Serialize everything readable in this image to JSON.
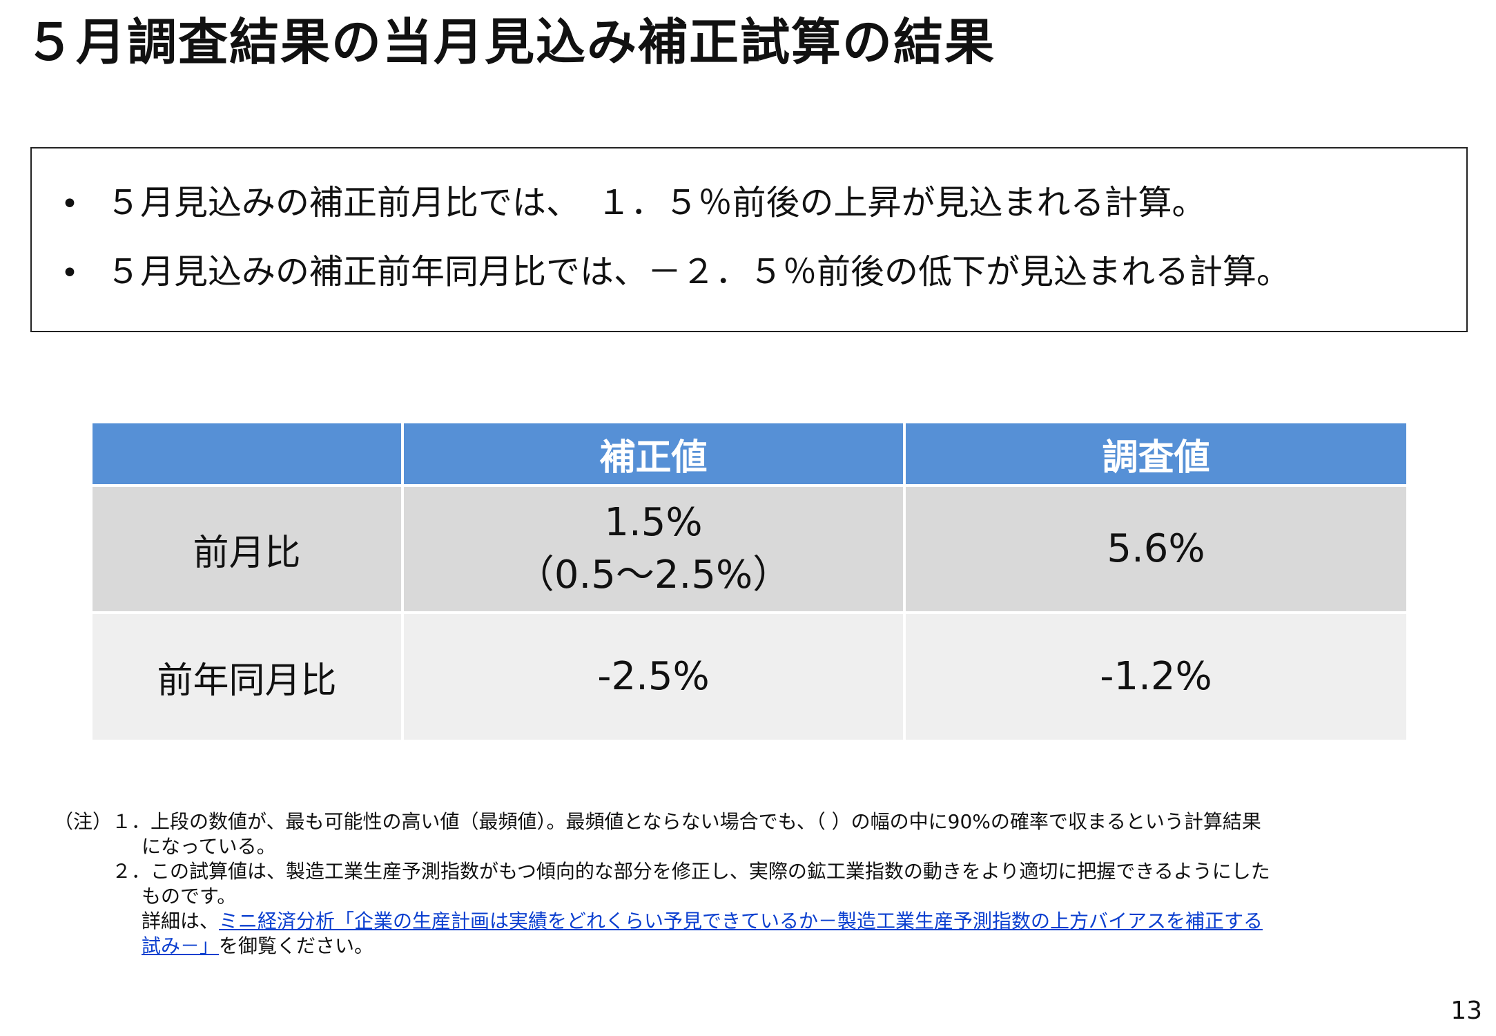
{
  "title": "５月調査結果の当月見込み補正試算の結果",
  "summary": {
    "bullet_symbol": "•",
    "bullets": [
      "５月見込みの補正前月比では、　１．５％前後の上昇が見込まれる計算。",
      "５月見込みの補正前年同月比では、－２．５％前後の低下が見込まれる計算。"
    ]
  },
  "table": {
    "headers": [
      "",
      "補正値",
      "調査値"
    ],
    "rows": [
      {
        "label": "前月比",
        "adjusted": "1.5%",
        "adjusted_range": "（0.5～2.5%）",
        "survey": "5.6%"
      },
      {
        "label": "前年同月比",
        "adjusted": "-2.5%",
        "adjusted_range": "",
        "survey": "-1.2%"
      }
    ],
    "colors": {
      "header": "#5690d6",
      "row1": "#d9d9d9",
      "row2": "#efefef"
    }
  },
  "notes": {
    "line1": "（注）１．上段の数値が、最も可能性の高い値（最頻値）。最頻値とならない場合でも、（ ）の幅の中に90%の確率で収まるという計算結果",
    "line2": "になっている。",
    "line3": "２．この試算値は、製造工業生産予測指数がもつ傾向的な部分を修正し、実際の鉱工業指数の動きをより適切に把握できるようにした",
    "line4": "ものです。",
    "line5_prefix": "詳細は、",
    "link_part1": "ミニ経済分析「企業の生産計画は実績をどれくらい予見できているか－製造工業生産予測指数の上方バイアスを補正する",
    "link_part2": "試み－」",
    "line6_suffix": "を御覧ください。",
    "link_color": "#0b3fcf"
  },
  "page_number": "13"
}
